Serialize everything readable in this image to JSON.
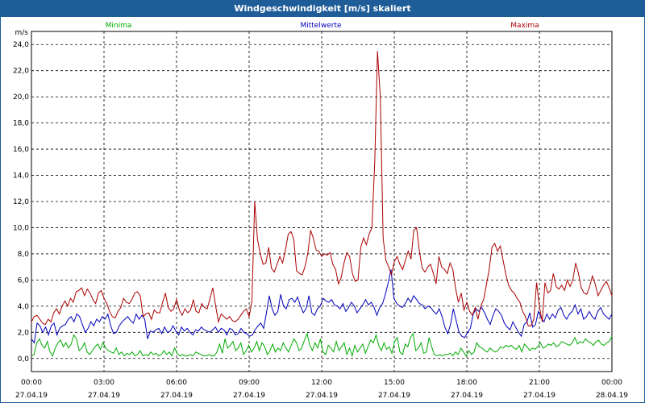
{
  "window": {
    "title": "Windgeschwindigkeit [m/s] skaliert"
  },
  "chart_data": {
    "type": "line",
    "title": "Windgeschwindigkeit [m/s] skaliert",
    "ylabel": "m/s",
    "xlabel": "",
    "ylim": [
      -1,
      25
    ],
    "yticks": [
      "0,0",
      "2,0",
      "4,0",
      "6,0",
      "8,0",
      "10,0",
      "12,0",
      "14,0",
      "16,0",
      "18,0",
      "20,0",
      "22,0",
      "24,0"
    ],
    "ytick_values": [
      0,
      2,
      4,
      6,
      8,
      10,
      12,
      14,
      16,
      18,
      20,
      22,
      24
    ],
    "xlim_hours": [
      0,
      24
    ],
    "xticks": [
      {
        "time": "00:00",
        "date": "27.04.19"
      },
      {
        "time": "03:00",
        "date": "27.04.19"
      },
      {
        "time": "06:00",
        "date": "27.04.19"
      },
      {
        "time": "09:00",
        "date": "27.04.19"
      },
      {
        "time": "12:00",
        "date": "27.04.19"
      },
      {
        "time": "15:00",
        "date": "27.04.19"
      },
      {
        "time": "18:00",
        "date": "27.04.19"
      },
      {
        "time": "21:00",
        "date": "27.04.19"
      },
      {
        "time": "00:00",
        "date": "28.04.19"
      }
    ],
    "grid": true,
    "legend_position": "top",
    "series": [
      {
        "name": "Minima",
        "color": "#00aa00",
        "values": [
          0.2,
          0.3,
          1.2,
          1.5,
          1.0,
          0.8,
          1.3,
          0.5,
          0.2,
          0.8,
          1.2,
          1.4,
          0.9,
          1.2,
          0.8,
          1.1,
          1.8,
          1.5,
          0.6,
          0.8,
          1.2,
          0.5,
          0.3,
          0.6,
          0.9,
          1.1,
          0.7,
          1.2,
          0.8,
          0.6,
          0.5,
          0.4,
          0.8,
          0.3,
          0.5,
          0.2,
          0.4,
          0.3,
          0.5,
          0.2,
          0.3,
          0.6,
          0.2,
          0.3,
          0.2,
          0.5,
          0.3,
          0.4,
          0.2,
          0.3,
          0.6,
          0.3,
          0.5,
          0.2,
          0.8,
          0.4,
          0.2,
          0.3,
          0.2,
          0.2,
          0.3,
          0.2,
          0.5,
          0.4,
          0.3,
          0.2,
          0.2,
          0.3,
          0.2,
          0.2,
          0.5,
          1.1,
          0.4,
          1.5,
          0.8,
          1.0,
          1.3,
          0.6,
          0.8,
          1.2,
          0.3,
          0.6,
          1.0,
          0.5,
          0.8,
          1.3,
          0.6,
          1.2,
          0.9,
          0.3,
          0.6,
          1.1,
          0.5,
          0.8,
          0.6,
          1.2,
          0.8,
          0.5,
          1.0,
          1.5,
          1.2,
          0.6,
          0.8,
          1.4,
          1.9,
          1.0,
          0.6,
          1.2,
          0.8,
          1.5,
          0.5,
          0.3,
          1.0,
          0.8,
          0.5,
          1.3,
          0.6,
          0.9,
          1.2,
          0.3,
          0.8,
          0.2,
          1.0,
          0.5,
          0.8,
          1.1,
          0.4,
          0.9,
          1.4,
          1.2,
          1.8,
          1.0,
          0.6,
          1.2,
          0.7,
          0.9,
          0.4,
          1.3,
          1.6,
          0.5,
          0.3,
          1.1,
          0.9,
          1.6,
          1.9,
          0.6,
          0.8,
          1.2,
          0.4,
          0.5,
          1.6,
          0.9,
          0.3,
          0.2,
          0.3,
          0.2,
          0.3,
          0.3,
          0.4,
          0.2,
          0.5,
          0.3,
          0.8,
          0.5,
          0.2,
          0.6,
          0.3,
          0.5,
          1.2,
          0.9,
          0.8,
          0.6,
          0.5,
          0.8,
          0.6,
          0.5,
          0.6,
          0.9,
          0.8,
          1.0,
          0.9,
          1.0,
          0.8,
          0.7,
          1.0,
          0.5,
          1.1,
          0.9,
          0.6,
          0.8,
          0.7,
          0.9,
          1.2,
          0.8,
          0.9,
          1.1,
          1.0,
          1.2,
          0.9,
          1.0,
          1.3,
          1.2,
          1.1,
          1.0,
          1.2,
          1.6,
          1.1,
          1.3,
          1.2,
          1.5,
          1.3,
          1.2,
          1.0,
          1.3,
          1.4,
          1.1,
          1.0,
          1.2,
          1.3,
          1.7
        ]
      },
      {
        "name": "Mittelwerte",
        "color": "#0000bb",
        "values": [
          1.5,
          1.2,
          2.7,
          2.5,
          2.0,
          2.4,
          1.8,
          2.5,
          2.7,
          1.8,
          2.3,
          2.5,
          2.6,
          3.0,
          3.2,
          2.8,
          3.4,
          3.2,
          2.6,
          2.0,
          2.3,
          2.8,
          2.5,
          3.0,
          2.8,
          3.2,
          3.0,
          3.4,
          2.5,
          1.9,
          2.0,
          2.5,
          2.8,
          3.0,
          3.2,
          2.9,
          2.7,
          3.4,
          3.0,
          3.3,
          3.0,
          1.5,
          2.1,
          2.0,
          2.2,
          2.3,
          1.9,
          2.4,
          2.0,
          2.1,
          2.5,
          2.1,
          1.8,
          2.4,
          2.1,
          2.3,
          2.0,
          1.8,
          2.2,
          2.1,
          2.4,
          2.2,
          2.1,
          2.0,
          2.2,
          2.4,
          2.0,
          2.3,
          2.2,
          1.8,
          2.3,
          2.2,
          1.8,
          1.9,
          2.3,
          2.0,
          1.9,
          1.7,
          1.8,
          2.2,
          2.5,
          2.7,
          2.3,
          3.5,
          4.8,
          3.8,
          3.3,
          3.6,
          4.9,
          4.0,
          3.8,
          4.5,
          4.6,
          4.3,
          4.7,
          4.0,
          3.5,
          3.8,
          4.8,
          3.5,
          3.3,
          3.8,
          4.0,
          4.6,
          4.4,
          4.3,
          4.5,
          4.1,
          4.0,
          3.8,
          4.2,
          3.6,
          3.9,
          4.3,
          4.0,
          3.5,
          3.8,
          4.1,
          4.5,
          4.1,
          4.3,
          3.9,
          3.3,
          3.9,
          4.2,
          4.9,
          5.8,
          6.8,
          4.6,
          4.2,
          4.0,
          3.9,
          4.2,
          4.6,
          4.3,
          4.8,
          4.5,
          4.2,
          4.1,
          3.8,
          4.0,
          3.9,
          3.6,
          3.4,
          3.8,
          3.2,
          2.4,
          1.9,
          2.6,
          3.8,
          2.9,
          2.0,
          1.7,
          1.6,
          2.0,
          2.3,
          3.4,
          3.8,
          3.6,
          3.9,
          3.5,
          3.0,
          2.6,
          3.3,
          3.8,
          3.6,
          3.3,
          2.7,
          2.4,
          2.2,
          2.8,
          2.4,
          2.0,
          1.7,
          2.6,
          2.8,
          3.5,
          2.4,
          2.6,
          3.6,
          3.1,
          2.8,
          3.4,
          3.0,
          3.4,
          3.1,
          3.7,
          3.9,
          3.3,
          3.0,
          3.4,
          3.6,
          4.1,
          3.4,
          3.8,
          3.0,
          3.2,
          3.6,
          3.2,
          3.0,
          3.6,
          3.9,
          3.4,
          3.2,
          3.0,
          3.4
        ]
      },
      {
        "name": "Maxima",
        "color": "#aa0000",
        "values": [
          2.8,
          3.2,
          3.3,
          3.0,
          2.7,
          2.6,
          3.0,
          2.8,
          3.5,
          3.8,
          3.4,
          4.0,
          4.4,
          4.0,
          4.6,
          4.3,
          5.1,
          5.2,
          5.4,
          4.8,
          5.3,
          5.0,
          4.5,
          4.2,
          5.0,
          5.2,
          4.6,
          4.2,
          3.6,
          3.2,
          3.1,
          3.6,
          3.9,
          4.6,
          4.3,
          4.2,
          4.5,
          5.0,
          5.1,
          4.8,
          3.2,
          3.4,
          3.5,
          3.0,
          3.7,
          3.5,
          3.5,
          4.3,
          5.0,
          3.9,
          3.6,
          3.8,
          4.5,
          3.7,
          3.3,
          3.8,
          3.5,
          3.7,
          4.5,
          3.6,
          3.5,
          4.2,
          3.9,
          3.8,
          4.6,
          5.4,
          4.0,
          2.8,
          3.4,
          3.2,
          3.0,
          3.2,
          2.9,
          2.8,
          3.0,
          3.3,
          3.6,
          3.8,
          3.2,
          4.4,
          12.0,
          9.1,
          8.0,
          7.2,
          7.3,
          8.5,
          6.9,
          6.6,
          7.2,
          7.8,
          7.3,
          8.3,
          9.5,
          9.7,
          9.1,
          6.7,
          6.5,
          6.4,
          7.0,
          8.0,
          9.8,
          9.2,
          8.3,
          8.2,
          7.8,
          8.0,
          7.9,
          8.1,
          7.2,
          6.8,
          5.7,
          6.2,
          7.3,
          8.1,
          7.8,
          6.5,
          5.9,
          6.0,
          8.5,
          9.2,
          8.7,
          9.5,
          10.0,
          15.0,
          23.5,
          20.0,
          9.2,
          7.5,
          7.0,
          6.4,
          7.4,
          7.8,
          7.2,
          6.8,
          7.5,
          8.2,
          7.6,
          9.8,
          10.0,
          8.2,
          6.9,
          6.6,
          7.0,
          7.2,
          6.5,
          5.7,
          7.8,
          7.0,
          6.8,
          6.5,
          7.3,
          6.8,
          5.3,
          4.3,
          5.0,
          3.7,
          4.3,
          3.6,
          3.3,
          3.9,
          3.0,
          4.0,
          4.5,
          5.6,
          6.8,
          8.5,
          8.8,
          8.2,
          8.6,
          7.5,
          6.4,
          5.6,
          5.2,
          5.0,
          4.6,
          4.3,
          3.6,
          3.2,
          2.5,
          2.5,
          3.0,
          5.8,
          4.0,
          2.8,
          5.8,
          5.0,
          5.2,
          6.5,
          5.5,
          5.3,
          5.6,
          5.2,
          6.0,
          5.5,
          6.0,
          7.3,
          6.5,
          5.4,
          5.0,
          4.9,
          5.5,
          6.3,
          5.7,
          4.8,
          5.2,
          5.6,
          5.9,
          5.4,
          4.8
        ]
      }
    ]
  }
}
